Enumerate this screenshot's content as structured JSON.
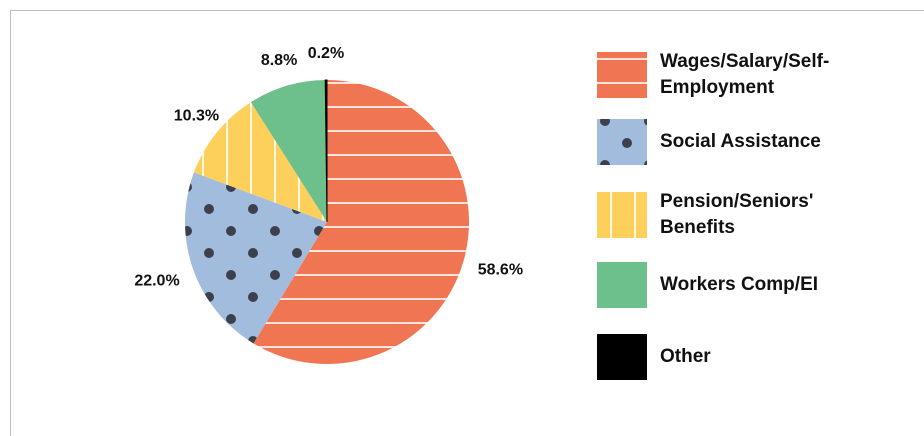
{
  "chart_data": {
    "type": "pie",
    "categories": [
      "Wages/Salary/Self-Employment",
      "Social Assistance",
      "Pension/Seniors' Benefits",
      "Workers Comp/EI",
      "Other"
    ],
    "values": [
      58.6,
      22.0,
      10.3,
      8.8,
      0.2
    ],
    "value_labels": [
      "58.6%",
      "22.0%",
      "10.3%",
      "8.8%",
      "0.2%"
    ],
    "colors": [
      "#f07552",
      "#a2bcdd",
      "#fdd05c",
      "#6dc08c",
      "#000000"
    ],
    "patterns": [
      "horizontal-lines",
      "dots",
      "vertical-lines",
      "none",
      "none"
    ],
    "legend": "right"
  }
}
